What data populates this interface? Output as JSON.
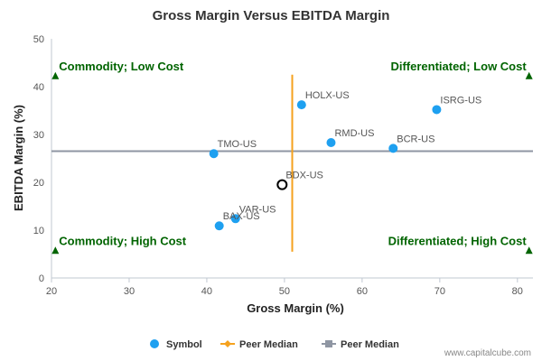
{
  "chart_data": {
    "type": "scatter",
    "title": "Gross Margin Versus EBITDA Margin",
    "xlabel": "Gross Margin (%)",
    "ylabel": "EBITDA Margin (%)",
    "xlim": [
      20,
      82
    ],
    "ylim": [
      0,
      50
    ],
    "xticks": [
      20,
      30,
      40,
      50,
      60,
      70,
      80
    ],
    "yticks": [
      0,
      10,
      20,
      30,
      40,
      50
    ],
    "grid": false,
    "legend_position": "bottom",
    "points": [
      {
        "label": "HOLX-US",
        "x": 52.2,
        "y": 36.2
      },
      {
        "label": "ISRG-US",
        "x": 69.6,
        "y": 35.2
      },
      {
        "label": "RMD-US",
        "x": 56.0,
        "y": 28.3
      },
      {
        "label": "BCR-US",
        "x": 64.0,
        "y": 27.1
      },
      {
        "label": "TMO-US",
        "x": 40.9,
        "y": 26.0
      },
      {
        "label": "VAR-US",
        "x": 43.7,
        "y": 12.4
      },
      {
        "label": "BAX-US",
        "x": 41.6,
        "y": 10.9
      }
    ],
    "highlight": {
      "label": "BDX-US",
      "x": 49.7,
      "y": 19.5
    },
    "peer_median_x": 51.0,
    "peer_median_x_range": [
      5.5,
      42.5
    ],
    "peer_median_y": 26.5,
    "quadrants": [
      {
        "label": "Commodity; Low Cost",
        "x": 20.5,
        "y": 42.3,
        "align": "left"
      },
      {
        "label": "Differentiated; Low Cost",
        "x": 81.5,
        "y": 42.3,
        "align": "right"
      },
      {
        "label": "Commodity; High Cost",
        "x": 20.5,
        "y": 5.8,
        "align": "left"
      },
      {
        "label": "Differentiated; High Cost",
        "x": 81.5,
        "y": 5.8,
        "align": "right"
      }
    ],
    "legend": [
      {
        "label": "Symbol",
        "kind": "dot"
      },
      {
        "label": "Peer Median",
        "kind": "line-orange"
      },
      {
        "label": "Peer Median",
        "kind": "line-gray"
      }
    ],
    "colors": {
      "points": "#1ea0f0",
      "peer_x": "#f5a21e",
      "peer_y": "#8f96a3",
      "quadrant_text": "#006400",
      "axis": "#c0c8d2",
      "title": "#333333",
      "tick": "#555555",
      "point_label": "#555555",
      "credit": "#888888"
    }
  },
  "credit": "www.capitalcube.com"
}
